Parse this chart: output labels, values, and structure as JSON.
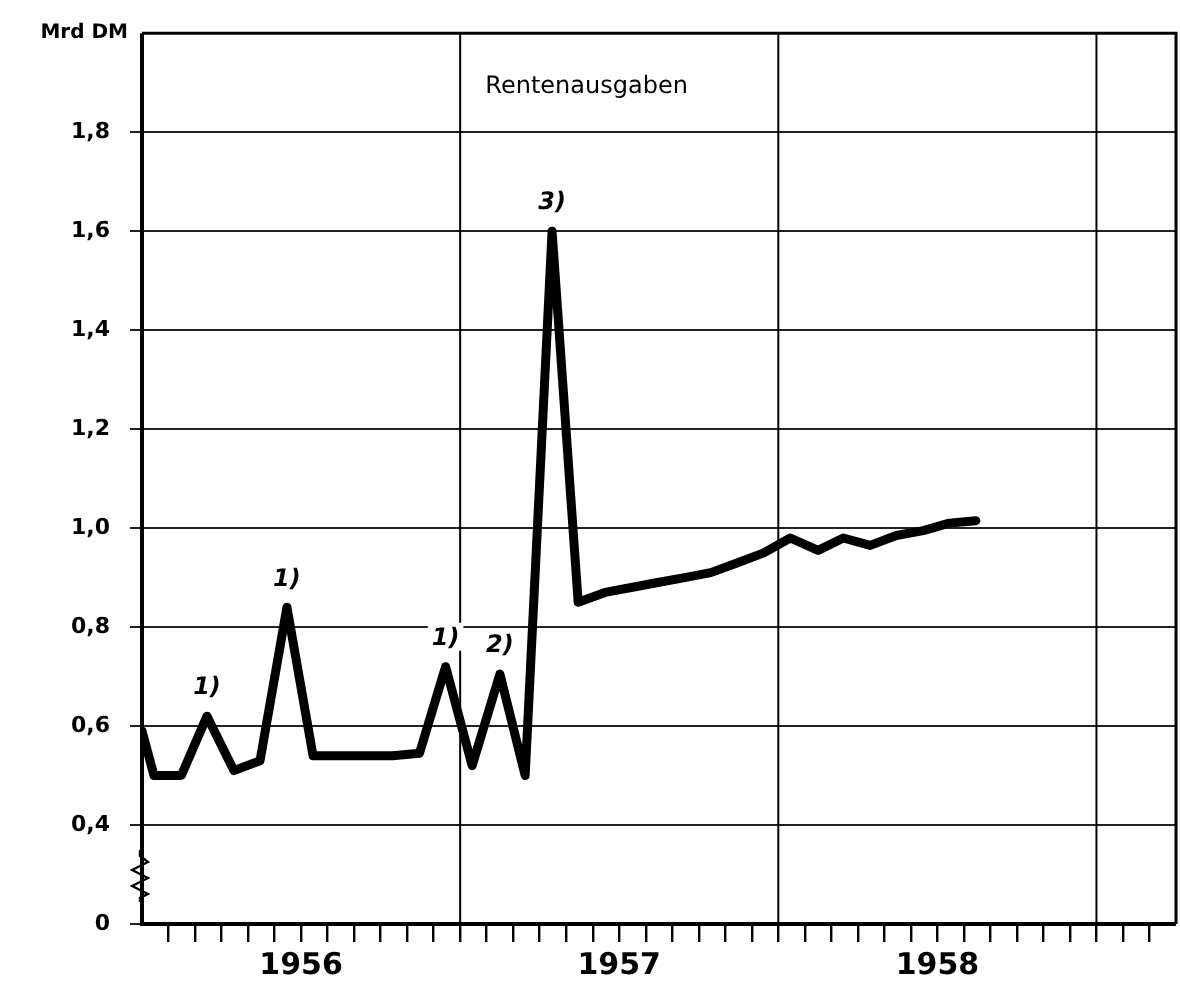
{
  "chart_data": {
    "type": "line",
    "title": "Rentenausgaben",
    "ylabel": "Mrd DM",
    "x": [
      "1956-01-01",
      "1956-01-15",
      "1956-02-15",
      "1956-03-15",
      "1956-04-15",
      "1956-05-15",
      "1956-06-15",
      "1956-07-15",
      "1956-08-15",
      "1956-09-15",
      "1956-10-15",
      "1956-11-15",
      "1956-12-15",
      "1957-01-15",
      "1957-02-15",
      "1957-03-15",
      "1957-04-15",
      "1957-05-15",
      "1957-06-15",
      "1957-07-15",
      "1957-08-15",
      "1957-09-15",
      "1957-10-15",
      "1957-11-15",
      "1957-12-15",
      "1958-01-15",
      "1958-02-15",
      "1958-03-15",
      "1958-04-15",
      "1958-05-15",
      "1958-06-15",
      "1958-07-15",
      "1958-08-15"
    ],
    "series": [
      {
        "color": "#000000",
        "values": [
          0.59,
          0.5,
          0.5,
          0.62,
          0.51,
          0.53,
          0.84,
          0.54,
          0.54,
          0.54,
          0.54,
          0.545,
          0.72,
          0.52,
          0.705,
          0.5,
          1.6,
          0.85,
          0.87,
          0.88,
          0.89,
          0.9,
          0.91,
          0.93,
          0.95,
          0.98,
          0.955,
          0.98,
          0.965,
          0.985,
          0.995,
          1.01,
          1.015
        ]
      }
    ],
    "ylim": [
      0.2,
      2.0
    ],
    "yticks": [
      {
        "value": 0.2,
        "label": "0"
      },
      {
        "value": 0.4,
        "label": "0,4"
      },
      {
        "value": 0.6,
        "label": "0,6"
      },
      {
        "value": 0.8,
        "label": "0,8"
      },
      {
        "value": 1.0,
        "label": "1,0"
      },
      {
        "value": 1.2,
        "label": "1,2"
      },
      {
        "value": 1.4,
        "label": "1,4"
      },
      {
        "value": 1.6,
        "label": "1,6"
      },
      {
        "value": 1.8,
        "label": "1,8"
      }
    ],
    "xlim": [
      "1956-01-01",
      "1959-04-01"
    ],
    "xticks": [
      {
        "value": "1956-02-01",
        "label": null
      },
      {
        "value": "1956-03-01",
        "label": null
      },
      {
        "value": "1956-04-01",
        "label": null
      },
      {
        "value": "1956-05-01",
        "label": null
      },
      {
        "value": "1956-06-01",
        "label": null
      },
      {
        "value": "1956-07-01",
        "label": "1956"
      },
      {
        "value": "1956-08-01",
        "label": null
      },
      {
        "value": "1956-09-01",
        "label": null
      },
      {
        "value": "1956-10-01",
        "label": null
      },
      {
        "value": "1956-11-01",
        "label": null
      },
      {
        "value": "1956-12-01",
        "label": null
      },
      {
        "value": "1957-01-01",
        "label": null
      },
      {
        "value": "1957-02-01",
        "label": null
      },
      {
        "value": "1957-03-01",
        "label": null
      },
      {
        "value": "1957-04-01",
        "label": null
      },
      {
        "value": "1957-05-01",
        "label": null
      },
      {
        "value": "1957-06-01",
        "label": null
      },
      {
        "value": "1957-07-01",
        "label": "1957"
      },
      {
        "value": "1957-08-01",
        "label": null
      },
      {
        "value": "1957-09-01",
        "label": null
      },
      {
        "value": "1957-10-01",
        "label": null
      },
      {
        "value": "1957-11-01",
        "label": null
      },
      {
        "value": "1957-12-01",
        "label": null
      },
      {
        "value": "1958-01-01",
        "label": null
      },
      {
        "value": "1958-02-01",
        "label": null
      },
      {
        "value": "1958-03-01",
        "label": null
      },
      {
        "value": "1958-04-01",
        "label": null
      },
      {
        "value": "1958-05-01",
        "label": null
      },
      {
        "value": "1958-06-01",
        "label": null
      },
      {
        "value": "1958-07-01",
        "label": "1958"
      },
      {
        "value": "1958-08-01",
        "label": null
      },
      {
        "value": "1958-09-01",
        "label": null
      },
      {
        "value": "1958-10-01",
        "label": null
      },
      {
        "value": "1958-11-01",
        "label": null
      },
      {
        "value": "1958-12-01",
        "label": null
      },
      {
        "value": "1959-01-01",
        "label": null
      },
      {
        "value": "1959-02-01",
        "label": null
      },
      {
        "value": "1959-03-01",
        "label": null
      }
    ],
    "ref_lines": [
      {
        "axis": "x",
        "value": "1957-01-01"
      },
      {
        "axis": "x",
        "value": "1958-01-01"
      },
      {
        "axis": "x",
        "value": "1959-01-01"
      }
    ],
    "annotations": [
      {
        "text": "1)",
        "x": "1956-03-15",
        "y": 0.62
      },
      {
        "text": "1)",
        "x": "1956-06-15",
        "y": 0.84
      },
      {
        "text": "1)",
        "x": "1956-12-15",
        "y": 0.72
      },
      {
        "text": "2)",
        "x": "1957-02-15",
        "y": 0.705
      },
      {
        "text": "3)",
        "x": "1957-04-15",
        "y": 1.6
      }
    ],
    "grid": "y",
    "legend": false,
    "marker": "none",
    "line_style": "solid"
  }
}
